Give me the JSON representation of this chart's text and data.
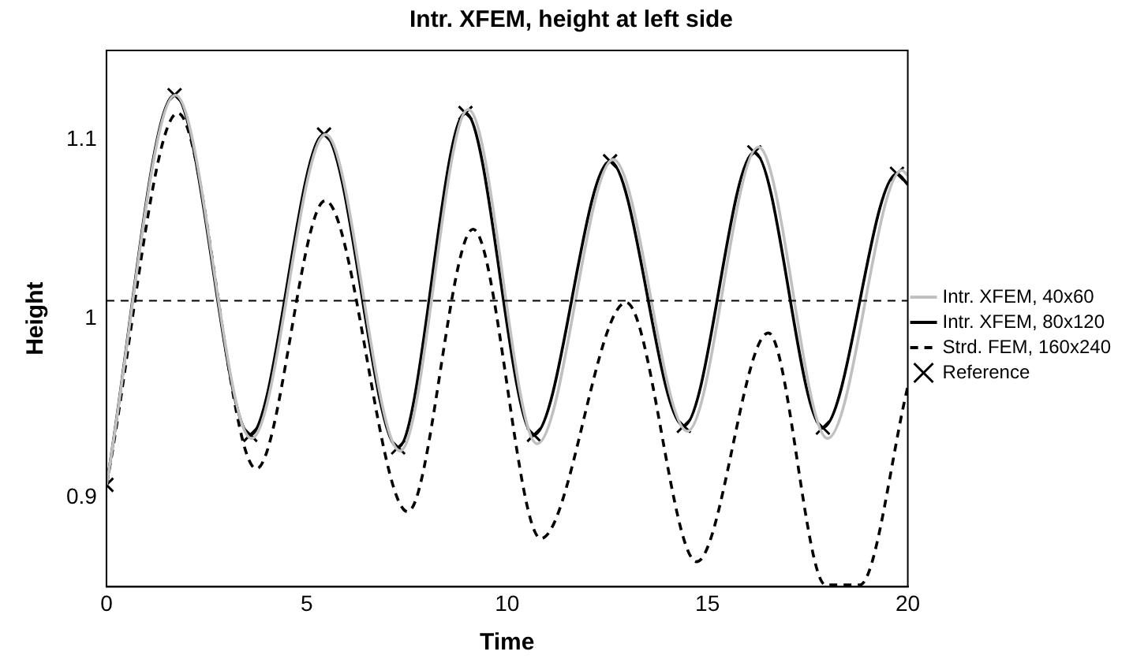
{
  "chart_data": {
    "type": "line",
    "title": "Intr. XFEM, height at left side",
    "xlabel": "Time",
    "ylabel": "Height",
    "xlim": [
      0,
      20
    ],
    "xticks": [
      0,
      5,
      10,
      15,
      20
    ],
    "ylim": [
      0.85,
      1.15
    ],
    "yticks": [
      0.9,
      1,
      1.1
    ],
    "grid": false,
    "legend": "right",
    "line_style": "solid",
    "marker": "none",
    "ref_lines": [
      {
        "axis": "y",
        "value": 1.01,
        "color": "#000000",
        "line_style": "dashed"
      }
    ],
    "series": [
      {
        "name": "Intr. XFEM, 40x60",
        "color": "#c0c0c0",
        "x": [
          0,
          1.72,
          3.62,
          5.47,
          7.33,
          9.03,
          10.75,
          12.65,
          14.5,
          16.27,
          18.0,
          19.85,
          20
        ],
        "values": [
          0.907,
          1.125,
          0.933,
          1.103,
          0.926,
          1.117,
          0.93,
          1.089,
          0.937,
          1.096,
          0.933,
          1.083,
          1.08
        ]
      },
      {
        "name": "Intr. XFEM, 80x120",
        "color": "#000000",
        "x": [
          0,
          1.7,
          3.59,
          5.43,
          7.28,
          8.96,
          10.67,
          12.57,
          14.41,
          16.17,
          17.88,
          19.73,
          20
        ],
        "values": [
          0.907,
          1.125,
          0.935,
          1.103,
          0.928,
          1.115,
          0.935,
          1.088,
          0.94,
          1.093,
          0.939,
          1.081,
          1.075
        ]
      },
      {
        "name": "Strd. FEM, 160x240",
        "color": "#000000",
        "line_style": "dashed",
        "x": [
          0,
          1.78,
          3.74,
          5.46,
          7.52,
          9.15,
          10.84,
          12.97,
          14.73,
          16.52,
          17.95,
          18.8,
          20
        ],
        "values": [
          0.907,
          1.115,
          0.916,
          1.066,
          0.892,
          1.05,
          0.877,
          1.009,
          0.864,
          0.992,
          0.851,
          0.851,
          0.962
        ]
      },
      {
        "name": "Reference",
        "type": "scatter",
        "marker": "cross",
        "color": "#000000",
        "x": [
          0,
          1.7,
          3.59,
          5.43,
          7.28,
          8.96,
          10.67,
          12.57,
          14.41,
          16.17,
          17.88,
          19.73
        ],
        "values": [
          0.907,
          1.125,
          0.935,
          1.103,
          0.928,
          1.115,
          0.935,
          1.088,
          0.94,
          1.093,
          0.939,
          1.081
        ]
      }
    ]
  }
}
